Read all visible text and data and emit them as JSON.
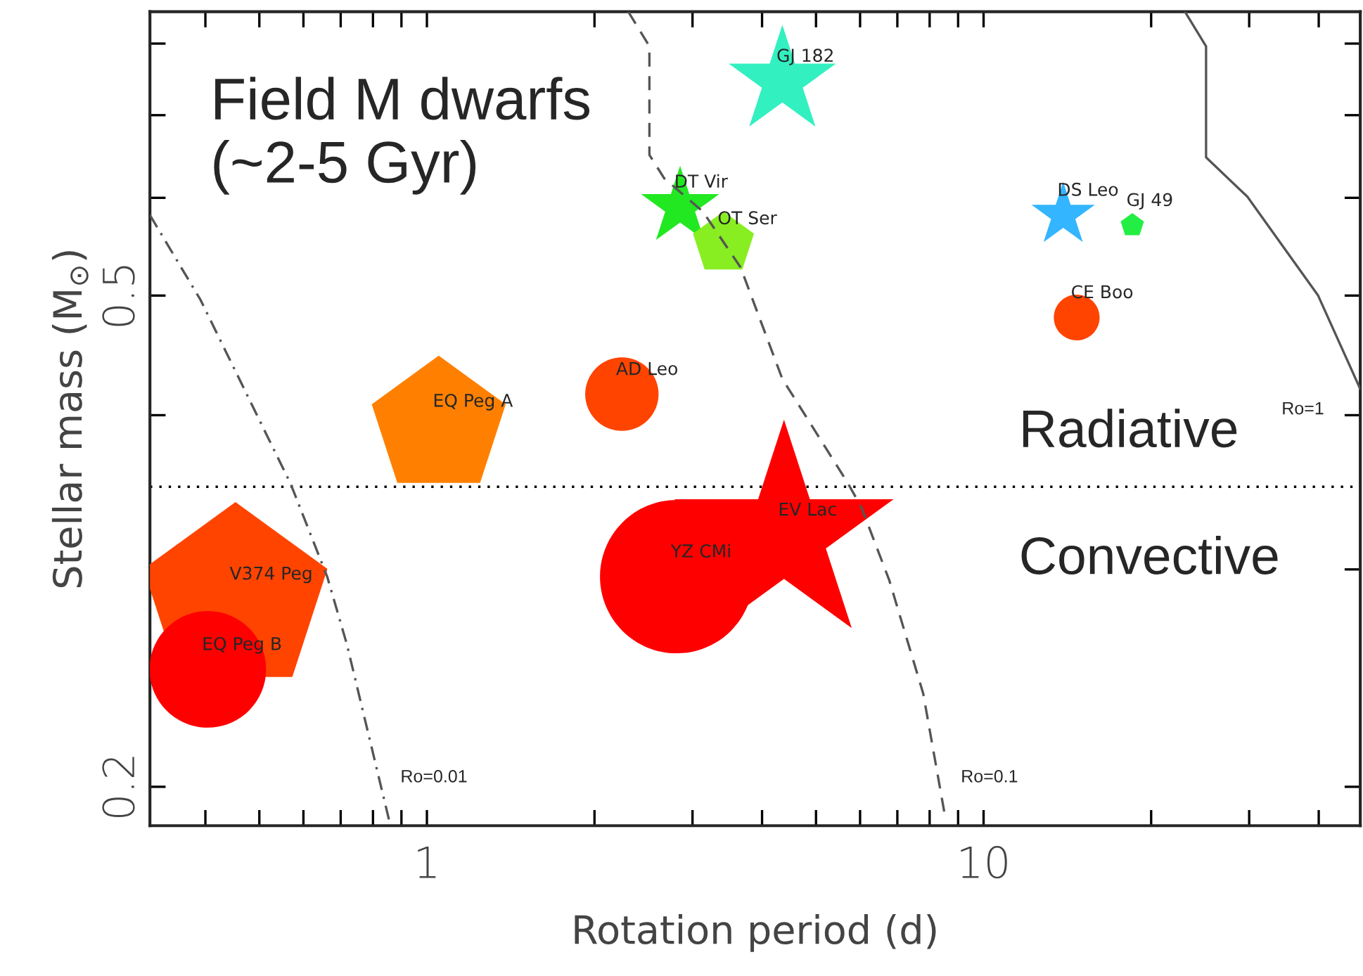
{
  "chart_data": {
    "type": "bubble",
    "xlabel": "Rotation period (d)",
    "ylabel": "Stellar mass (M$_{⊙}$)",
    "log": "xy",
    "xlim": [
      0.318,
      47.5
    ],
    "ylim": [
      0.186,
      0.849
    ],
    "xticks": [
      {
        "value": 0.4,
        "label": null
      },
      {
        "value": 0.5,
        "label": null
      },
      {
        "value": 0.6,
        "label": null
      },
      {
        "value": 0.7,
        "label": null
      },
      {
        "value": 0.8,
        "label": null
      },
      {
        "value": 0.9,
        "label": null
      },
      1,
      {
        "value": 2,
        "label": null
      },
      {
        "value": 3,
        "label": null
      },
      {
        "value": 4,
        "label": null
      },
      {
        "value": 5,
        "label": null
      },
      {
        "value": 6,
        "label": null
      },
      {
        "value": 7,
        "label": null
      },
      {
        "value": 8,
        "label": null
      },
      {
        "value": 9,
        "label": null
      },
      10,
      {
        "value": 20,
        "label": null
      },
      {
        "value": 30,
        "label": null
      },
      {
        "value": 40,
        "label": null
      }
    ],
    "yticks": [
      0.2,
      {
        "value": 0.3,
        "label": null
      },
      {
        "value": 0.4,
        "label": null
      },
      0.5,
      {
        "value": 0.6,
        "label": null
      },
      {
        "value": 0.7,
        "label": null
      },
      {
        "value": 0.8,
        "label": null
      }
    ],
    "grid": false,
    "ref_lines": [
      {
        "axis": "y",
        "value": 0.35,
        "color": "#000000",
        "line_style": "dotted"
      }
    ],
    "series": [
      {
        "type": "line",
        "color": "#555555",
        "line_style": "dashdot",
        "marker": "none",
        "x": [
          0.318,
          0.392,
          0.569,
          0.662,
          0.718,
          0.855
        ],
        "values": [
          0.581,
          0.496,
          0.352,
          0.296,
          0.261,
          0.188
        ]
      },
      {
        "type": "line",
        "color": "#555555",
        "line_style": "dashed",
        "marker": "none",
        "x": [
          2.3,
          2.51,
          2.51,
          2.67,
          3.13,
          3.66,
          4.35,
          5.69,
          6.03,
          6.77,
          7.79,
          8.55
        ],
        "values": [
          0.849,
          0.796,
          0.65,
          0.622,
          0.585,
          0.527,
          0.428,
          0.353,
          0.337,
          0.294,
          0.238,
          0.188
        ]
      },
      {
        "type": "line",
        "color": "#555555",
        "line_style": "solid",
        "marker": "none",
        "x": [
          23.0,
          25.1,
          25.1,
          29.8,
          39.9,
          47.5
        ],
        "values": [
          0.849,
          0.796,
          0.647,
          0.601,
          0.5,
          0.42
        ]
      },
      {
        "name": "GJ 182",
        "marker": "star",
        "color": "#33f0c0",
        "x": [
          4.35
        ],
        "values": [
          0.746
        ],
        "sizes": [
          0.16
        ]
      },
      {
        "name": "DT Vir",
        "marker": "star",
        "color": "#22e822",
        "x": [
          2.85
        ],
        "values": [
          0.59
        ],
        "sizes": [
          0.085
        ]
      },
      {
        "name": "OT Ser",
        "color": "#88ee22",
        "x": [
          3.41
        ],
        "values": [
          0.551
        ],
        "sizes": [
          0.11
        ]
      },
      {
        "name": "DS Leo",
        "marker": "star",
        "color": "#33b5ff",
        "x": [
          13.9
        ],
        "values": [
          0.581
        ],
        "sizes": [
          0.056
        ]
      },
      {
        "name": "GJ 49",
        "color": "#22ee44",
        "x": [
          18.5
        ],
        "values": [
          0.57
        ],
        "sizes": [
          0.016
        ]
      },
      {
        "name": "CE Boo",
        "marker": "circle",
        "color": "#ff4400",
        "x": [
          14.7
        ],
        "values": [
          0.48
        ],
        "sizes": [
          0.074
        ]
      },
      {
        "name": "AD Leo",
        "marker": "circle",
        "color": "#ff4400",
        "x": [
          2.24
        ],
        "values": [
          0.416
        ],
        "sizes": [
          0.19
        ]
      },
      {
        "name": "EQ Peg A",
        "color": "#ff8000",
        "x": [
          1.05
        ],
        "values": [
          0.392
        ],
        "sizes": [
          0.53
        ]
      },
      {
        "name": "YZ CMi",
        "marker": "circle",
        "color": "#ff0000",
        "x": [
          2.81
        ],
        "values": [
          0.296
        ],
        "sizes": [
          0.83
        ]
      },
      {
        "name": "EV Lac",
        "marker": "star",
        "color": "#ff0000",
        "x": [
          4.38
        ],
        "values": [
          0.32
        ],
        "sizes": [
          0.67
        ]
      },
      {
        "name": "V374 Peg",
        "color": "#ff4400",
        "x": [
          0.453
        ],
        "values": [
          0.284
        ],
        "sizes": [
          1
        ]
      },
      {
        "name": "EQ Peg B",
        "marker": "circle",
        "color": "#ff0000",
        "x": [
          0.404
        ],
        "values": [
          0.249
        ],
        "sizes": [
          0.48
        ]
      }
    ],
    "annotations": [
      "Field M dwarfs\n(~2-5 Gyr)",
      "Radiative",
      "Convective",
      "Ro=0.01",
      "Ro=0.1",
      "Ro=1"
    ]
  }
}
